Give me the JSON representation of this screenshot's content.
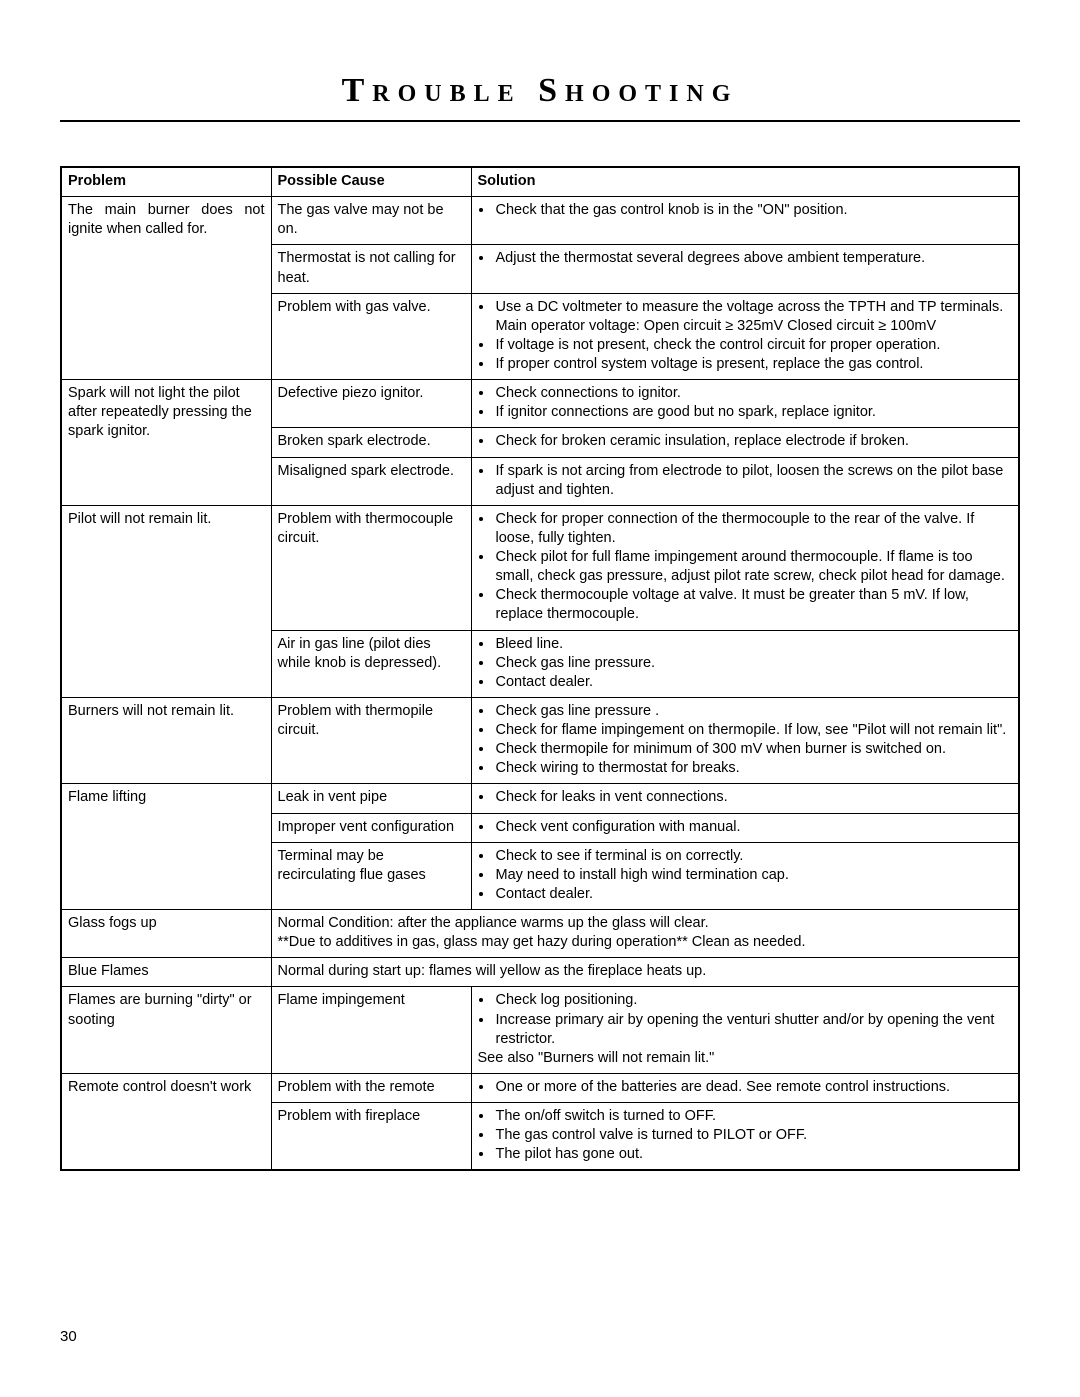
{
  "page_number": "30",
  "title": "Trouble Shooting",
  "headers": {
    "problem": "Problem",
    "cause": "Possible Cause",
    "solution": "Solution"
  },
  "rows": [
    {
      "problem": "The main burner does not ignite when called for.",
      "problem_justify_first_line": true,
      "causes": [
        {
          "cause": "The gas valve may not be on.",
          "solution_items": [
            "Check that the gas control knob is in the \"ON\" position."
          ]
        },
        {
          "cause": "Thermostat is not calling for heat.",
          "solution_items": [
            "Adjust the thermostat several degrees above ambient temperature."
          ]
        },
        {
          "cause": "Problem with gas valve.",
          "solution_items": [
            "Use a DC voltmeter to measure the voltage across the TPTH and TP terminals. Main operator voltage: Open circuit ≥ 325mV Closed circuit ≥ 100mV",
            "If voltage is not present, check the control circuit for proper operation.",
            "If proper control system voltage is present, replace the gas control."
          ]
        }
      ]
    },
    {
      "problem": "Spark will not light the pilot after repeatedly pressing the spark ignitor.",
      "causes": [
        {
          "cause": "Defective piezo ignitor.",
          "solution_items": [
            "Check connections to ignitor.",
            "If ignitor connections are good but no spark, replace ignitor."
          ]
        },
        {
          "cause": "Broken spark electrode.",
          "solution_items": [
            "Check for broken ceramic insulation, replace electrode if broken."
          ]
        },
        {
          "cause": "Misaligned spark electrode.",
          "solution_items": [
            "If spark is not arcing from electrode to pilot, loosen the screws on the pilot base adjust and tighten."
          ]
        }
      ]
    },
    {
      "problem": "Pilot will not remain lit.",
      "causes": [
        {
          "cause": "Problem with thermocouple circuit.",
          "solution_items": [
            "Check for proper connection of the thermocouple to the rear of the valve. If loose, fully tighten.",
            "Check pilot for full flame impingement around thermocouple.  If flame is too small, check gas pressure, adjust pilot rate screw, check pilot head for damage.",
            "Check thermocouple voltage at valve. It must be greater than 5 mV.  If low, replace thermocouple."
          ]
        },
        {
          "cause": "Air in gas line (pilot dies while knob is depressed).",
          "solution_items": [
            "Bleed line.",
            "Check gas line pressure.",
            "Contact dealer."
          ]
        }
      ]
    },
    {
      "problem": "Burners will not remain lit.",
      "causes": [
        {
          "cause": "Problem with thermopile circuit.",
          "solution_items": [
            "Check gas line pressure .",
            "Check for flame impingement on thermopile. If low, see \"Pilot will not remain lit\".",
            "Check thermopile for minimum of 300 mV when burner is switched on.",
            "Check wiring to thermostat for breaks."
          ]
        }
      ]
    },
    {
      "problem": "Flame lifting",
      "causes": [
        {
          "cause": "Leak in vent pipe",
          "solution_items": [
            "Check for leaks in vent connections."
          ]
        },
        {
          "cause": "Improper vent configuration",
          "solution_items": [
            "Check vent configuration with manual."
          ]
        },
        {
          "cause": "Terminal may be recirculating flue gases",
          "solution_items": [
            "Check to see if terminal is on correctly.",
            "May need to install high wind termination cap.",
            "Contact dealer."
          ]
        }
      ]
    },
    {
      "problem": "Glass fogs up",
      "span_note": "Normal Condition: after the appliance warms up the glass will clear.\n**Due to additives in gas, glass may get hazy during operation** Clean as needed."
    },
    {
      "problem": "Blue Flames",
      "span_note": "Normal during start up: flames will yellow as the fireplace heats up."
    },
    {
      "problem": "Flames are burning \"dirty\" or sooting",
      "causes": [
        {
          "cause": "Flame impingement",
          "solution_items": [
            "Check log positioning.",
            "Increase primary air by opening the venturi shutter and/or by opening the vent restrictor."
          ],
          "solution_tail": "See also \"Burners will not remain lit.\""
        }
      ]
    },
    {
      "problem": "Remote control doesn't work",
      "causes": [
        {
          "cause": "Problem with the remote",
          "solution_items": [
            "One or more of the batteries are dead. See remote control instructions."
          ]
        },
        {
          "cause": "Problem with fireplace",
          "solution_items": [
            "The on/off switch is turned to OFF.",
            "The gas control valve is turned to PILOT or OFF.",
            "The pilot has gone out."
          ]
        }
      ]
    }
  ]
}
